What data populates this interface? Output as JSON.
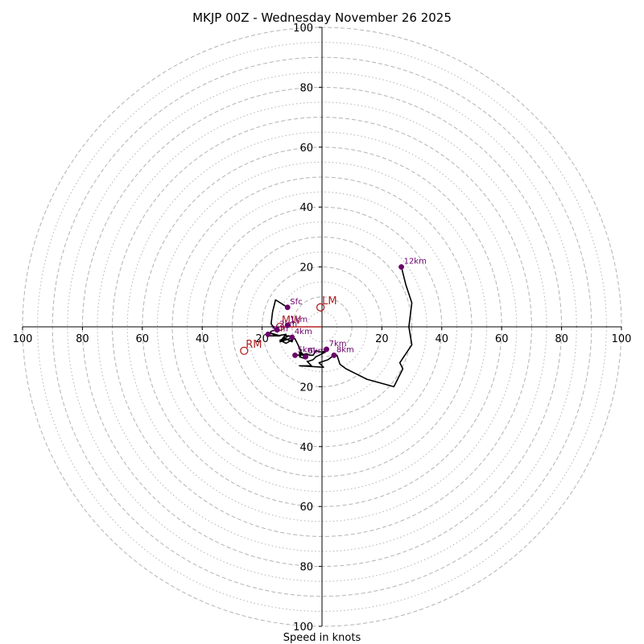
{
  "chart_data": {
    "type": "hodograph",
    "title": "MKJP 00Z - Wednesday November 26 2025",
    "xlabel": "Speed in knots",
    "units": "knots",
    "range": [
      -100,
      100
    ],
    "major_rings": [
      10,
      20,
      30,
      40,
      50,
      60,
      70,
      80,
      90,
      100
    ],
    "dotted_rings": [
      5,
      15,
      25,
      35,
      45,
      55,
      65,
      75,
      85,
      95
    ],
    "x_tick_labels": [
      "100",
      "80",
      "60",
      "40",
      "20",
      "20",
      "40",
      "60",
      "80",
      "100"
    ],
    "x_tick_values": [
      -100,
      -80,
      -60,
      -40,
      -20,
      20,
      40,
      60,
      80,
      100
    ],
    "y_tick_labels": [
      "100",
      "80",
      "60",
      "40",
      "20",
      "20",
      "40",
      "60",
      "80",
      "100"
    ],
    "y_tick_values": [
      100,
      80,
      60,
      40,
      20,
      -20,
      -40,
      -60,
      -80,
      -100
    ],
    "colors": {
      "trace": "#000000",
      "heights": "#6b006b",
      "motion": "#b22222",
      "rings": "#b3b3b3",
      "axes": "#000000"
    },
    "trace": [
      [
        -11.5,
        6.5
      ],
      [
        -15.5,
        9
      ],
      [
        -16.5,
        5
      ],
      [
        -17,
        1
      ],
      [
        -15.5,
        -1
      ],
      [
        -17,
        -1.5
      ],
      [
        -18,
        -3
      ],
      [
        -14,
        -3
      ],
      [
        -17.5,
        -2
      ],
      [
        -15,
        -3
      ],
      [
        -12,
        -2.5
      ],
      [
        -14,
        -5
      ],
      [
        -12.5,
        -3
      ],
      [
        -11,
        -3
      ],
      [
        -9.5,
        -3.5
      ],
      [
        -10,
        -5
      ],
      [
        -12,
        -4
      ],
      [
        -14,
        -5
      ],
      [
        -11,
        -4
      ],
      [
        -10,
        -3.5
      ],
      [
        -9.5,
        -4
      ],
      [
        -12,
        -5.5
      ],
      [
        -14,
        -4.5
      ],
      [
        -11,
        -3
      ],
      [
        -9,
        -4
      ],
      [
        -8,
        -6
      ],
      [
        -7,
        -8.5
      ],
      [
        -6.5,
        -9
      ],
      [
        -7.5,
        -9
      ],
      [
        -7.5,
        -8.5
      ],
      [
        -7,
        -9
      ],
      [
        -6.5,
        -9.5
      ],
      [
        -5,
        -9
      ],
      [
        -8,
        -9.5
      ],
      [
        -9,
        -9
      ],
      [
        -9,
        -9.5
      ],
      [
        -7,
        -9.5
      ],
      [
        -7.5,
        -10
      ],
      [
        -6,
        -10.5
      ],
      [
        -5.5,
        -9
      ],
      [
        -4,
        -9.5
      ],
      [
        -3,
        -9.5
      ],
      [
        -2,
        -8
      ],
      [
        0,
        -8.5
      ],
      [
        2,
        -7.5
      ],
      [
        2,
        -7.5
      ],
      [
        1,
        -8.5
      ],
      [
        -2,
        -10
      ],
      [
        -3,
        -11
      ],
      [
        -4.5,
        -11.5
      ],
      [
        -5,
        -11.5
      ],
      [
        -3.5,
        -13
      ],
      [
        -7.5,
        -13
      ],
      [
        0.5,
        -13.5
      ],
      [
        -1,
        -12
      ],
      [
        2,
        -11
      ],
      [
        4,
        -9.5
      ],
      [
        4,
        -9.5
      ],
      [
        5,
        -9.5
      ],
      [
        6,
        -12.5
      ],
      [
        8,
        -14
      ],
      [
        11,
        -15.5
      ],
      [
        15,
        -17.5
      ],
      [
        24,
        -20
      ],
      [
        27,
        -14
      ],
      [
        26,
        -12
      ],
      [
        30,
        -6
      ],
      [
        30,
        -6
      ],
      [
        29,
        0
      ],
      [
        30,
        8
      ],
      [
        28,
        14
      ],
      [
        26.5,
        20
      ]
    ],
    "height_markers": [
      {
        "label": "Sfc",
        "u": -11.5,
        "v": 6.5
      },
      {
        "label": "1km",
        "u": -11.5,
        "v": 0.5
      },
      {
        "label": "2km",
        "u": -15,
        "v": -1
      },
      {
        "label": "3km",
        "u": -18,
        "v": -2.5
      },
      {
        "label": "4km",
        "u": -10,
        "v": -3.5
      },
      {
        "label": "5km",
        "u": -9,
        "v": -9.5
      },
      {
        "label": "6km",
        "u": -5.5,
        "v": -10
      },
      {
        "label": "7km",
        "u": 1.5,
        "v": -7.5
      },
      {
        "label": "8km",
        "u": 4,
        "v": -9.5
      },
      {
        "label": "12km",
        "u": 26.5,
        "v": 20
      }
    ],
    "storm_motion": [
      {
        "label": "LM",
        "u": -0.5,
        "v": 6.5
      },
      {
        "label": "MW",
        "u": -14,
        "v": 0
      },
      {
        "label": "RM",
        "u": -26,
        "v": -8
      }
    ],
    "shear_vector": {
      "from": [
        -14,
        0
      ],
      "to": [
        0,
        0
      ]
    }
  }
}
